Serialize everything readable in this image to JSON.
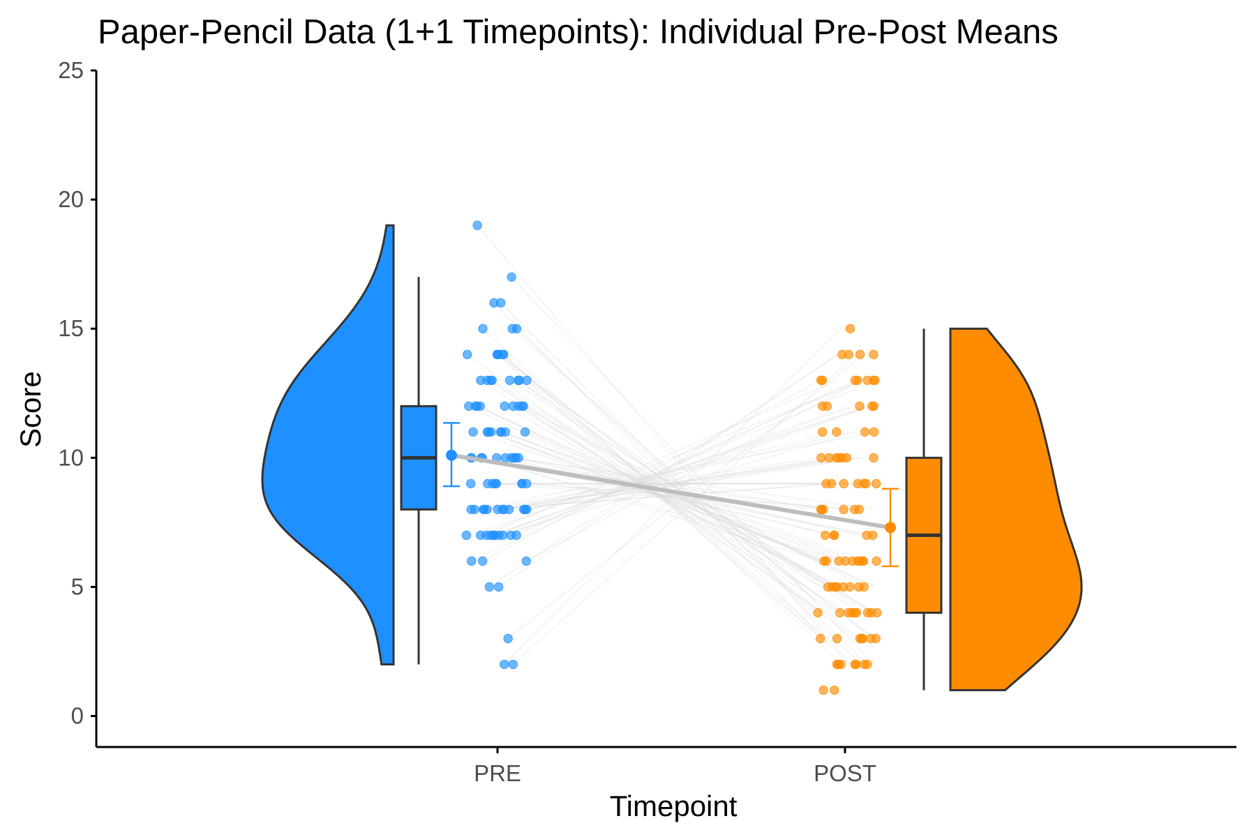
{
  "chart_data": {
    "type": "raincloud",
    "title": "Paper-Pencil Data (1+1 Timepoints): Individual Pre-Post Means",
    "xlabel": "Timepoint",
    "ylabel": "Score",
    "categories": [
      "PRE",
      "POST"
    ],
    "ylim": [
      -1.2,
      25
    ],
    "yticks": [
      0,
      5,
      10,
      15,
      20,
      25
    ],
    "grid": false,
    "legend": "none",
    "colors": {
      "PRE": "#1E90FF",
      "POST": "#FF8C00",
      "mean_line": "#BDBDBD",
      "outline": "#333333"
    },
    "series": [
      {
        "name": "PRE",
        "box": {
          "min": 2,
          "q1": 8,
          "median": 10,
          "q3": 12,
          "max": 17
        },
        "mean": 10.1,
        "error_bar": [
          8.9,
          11.35
        ],
        "density_range": [
          2,
          19
        ],
        "points": [
          19,
          17,
          16,
          16,
          15,
          15,
          15,
          14,
          14,
          14,
          14,
          14,
          14,
          13,
          13,
          13,
          13,
          13,
          13,
          13,
          13,
          12,
          12,
          12,
          12,
          12,
          12,
          12,
          12,
          12,
          11,
          11,
          11,
          11,
          11,
          11,
          11,
          11,
          10,
          10,
          10,
          10,
          10,
          10,
          10,
          10,
          10,
          10,
          9,
          9,
          9,
          9,
          9,
          9,
          9,
          9,
          8,
          8,
          8,
          8,
          8,
          8,
          8,
          8,
          8,
          8,
          8,
          8,
          7,
          7,
          7,
          7,
          7,
          7,
          7,
          7,
          7,
          7,
          6,
          6,
          6,
          5,
          5,
          3,
          2,
          2
        ]
      },
      {
        "name": "POST",
        "box": {
          "min": 1,
          "q1": 4,
          "median": 7,
          "q3": 10,
          "max": 15
        },
        "mean": 7.3,
        "error_bar": [
          5.8,
          8.8
        ],
        "density_range": [
          1,
          15
        ],
        "points": [
          15,
          14,
          14,
          14,
          14,
          13,
          13,
          13,
          13,
          13,
          13,
          13,
          12,
          12,
          12,
          12,
          12,
          11,
          11,
          11,
          11,
          10,
          10,
          10,
          10,
          10,
          10,
          10,
          9,
          9,
          9,
          9,
          9,
          9,
          9,
          8,
          8,
          8,
          8,
          8,
          8,
          7,
          7,
          7,
          7,
          7,
          6,
          6,
          6,
          6,
          6,
          6,
          6,
          6,
          6,
          6,
          5,
          5,
          5,
          5,
          5,
          5,
          5,
          5,
          4,
          4,
          4,
          4,
          4,
          4,
          4,
          4,
          4,
          3,
          3,
          3,
          3,
          3,
          3,
          3,
          2,
          2,
          2,
          2,
          2,
          2,
          2,
          1,
          1
        ]
      }
    ]
  }
}
